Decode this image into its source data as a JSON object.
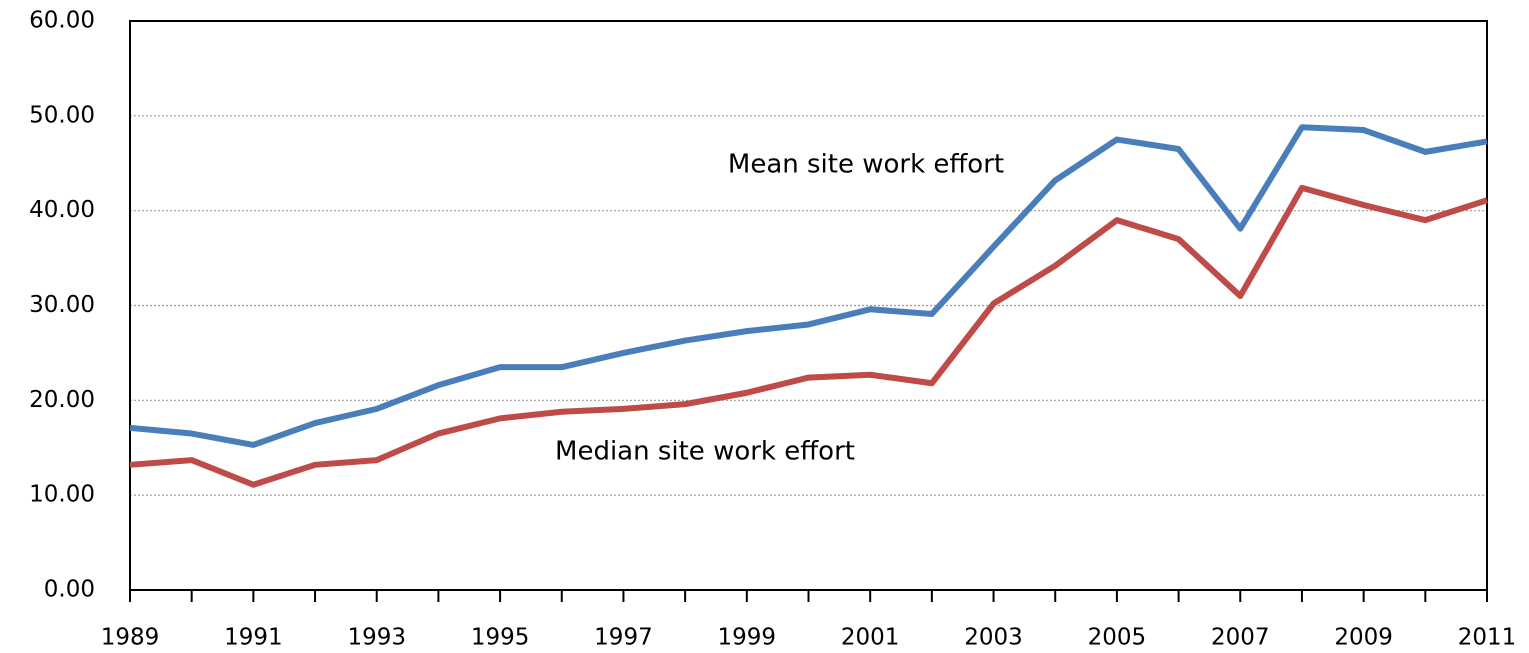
{
  "chart_data": {
    "type": "line",
    "x": [
      1989,
      1990,
      1991,
      1992,
      1993,
      1994,
      1995,
      1996,
      1997,
      1998,
      1999,
      2000,
      2001,
      2002,
      2003,
      2004,
      2005,
      2006,
      2007,
      2008,
      2009,
      2010,
      2011
    ],
    "series": [
      {
        "name": "Mean site work effort",
        "color": "#4a7ebb",
        "values": [
          17.1,
          16.5,
          15.3,
          17.6,
          19.1,
          21.6,
          23.5,
          23.5,
          25.0,
          26.3,
          27.3,
          28.0,
          29.6,
          29.1,
          36.2,
          43.2,
          47.5,
          46.5,
          38.1,
          48.8,
          48.5,
          46.2,
          47.3
        ]
      },
      {
        "name": "Median site work effort",
        "color": "#be4b48",
        "values": [
          13.2,
          13.7,
          11.1,
          13.2,
          13.7,
          16.5,
          18.1,
          18.8,
          19.1,
          19.6,
          20.8,
          22.4,
          22.7,
          21.8,
          30.2,
          34.2,
          39.0,
          37.0,
          31.0,
          42.4,
          40.6,
          39.0,
          41.1
        ]
      }
    ],
    "xlim": [
      1989,
      2011
    ],
    "xticks": [
      1989,
      1991,
      1993,
      1995,
      1997,
      1999,
      2001,
      2003,
      2005,
      2007,
      2009,
      2011
    ],
    "xminor_ticks": [
      1990,
      1992,
      1994,
      1996,
      1998,
      2000,
      2002,
      2004,
      2006,
      2008,
      2010
    ],
    "ylim": [
      0,
      60
    ],
    "yticks": [
      {
        "value": 0,
        "label": "0.00"
      },
      {
        "value": 10,
        "label": "10.00"
      },
      {
        "value": 20,
        "label": "20.00"
      },
      {
        "value": 30,
        "label": "30.00"
      },
      {
        "value": 40,
        "label": "40.00"
      },
      {
        "value": 50,
        "label": "50.00"
      },
      {
        "value": 60,
        "label": "60.00"
      }
    ],
    "grid": true
  }
}
